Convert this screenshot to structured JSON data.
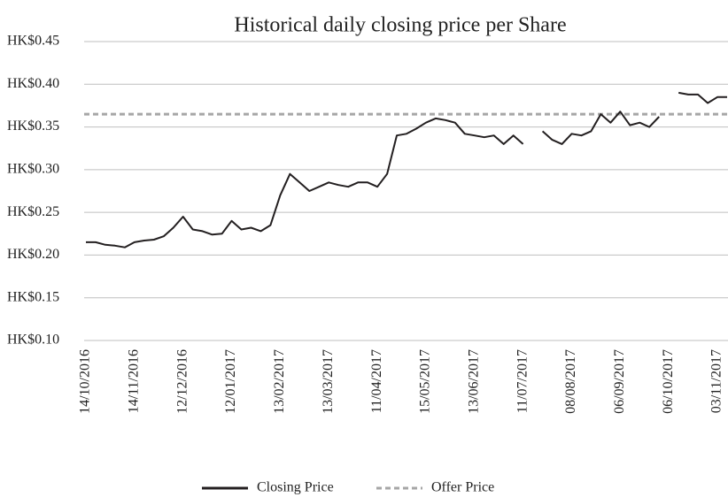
{
  "chart_data": {
    "type": "line",
    "title": "Historical daily closing price per Share",
    "categories": [
      "14/10/2016",
      null,
      null,
      null,
      null,
      "14/11/2016",
      null,
      null,
      null,
      null,
      "12/12/2016",
      null,
      null,
      null,
      null,
      "12/01/2017",
      null,
      null,
      null,
      null,
      "13/02/2017",
      null,
      null,
      null,
      null,
      "13/03/2017",
      null,
      null,
      null,
      null,
      "11/04/2017",
      null,
      null,
      null,
      null,
      "15/05/2017",
      null,
      null,
      null,
      null,
      "13/06/2017",
      null,
      null,
      null,
      null,
      "11/07/2017",
      null,
      null,
      null,
      null,
      "08/08/2017",
      null,
      null,
      null,
      null,
      "06/09/2017",
      null,
      null,
      null,
      null,
      "06/10/2017",
      null,
      null,
      null,
      null,
      "03/11/2017",
      null
    ],
    "series": [
      {
        "name": "Closing Price",
        "color": "#231f20",
        "values": [
          0.215,
          0.215,
          0.212,
          0.211,
          0.209,
          0.215,
          0.217,
          0.218,
          0.222,
          0.232,
          0.245,
          0.23,
          0.228,
          0.224,
          0.225,
          0.24,
          0.23,
          0.232,
          0.228,
          0.235,
          0.27,
          0.295,
          0.285,
          0.275,
          0.28,
          0.285,
          0.282,
          0.28,
          0.285,
          0.285,
          0.28,
          0.295,
          0.34,
          0.342,
          0.348,
          0.355,
          0.36,
          0.358,
          0.355,
          0.342,
          0.34,
          0.338,
          0.34,
          0.33,
          0.34,
          0.33,
          null,
          0.345,
          0.335,
          0.33,
          0.342,
          0.34,
          0.345,
          0.365,
          0.355,
          0.368,
          0.352,
          0.355,
          0.35,
          0.362,
          null,
          0.39,
          0.388,
          0.388,
          0.378,
          0.385,
          0.385
        ]
      }
    ],
    "reference_lines": [
      {
        "name": "Offer Price",
        "value": 0.365,
        "color": "#a6a6a6",
        "dashed": true
      }
    ],
    "ylim": [
      0.1,
      0.45
    ],
    "yticks": [
      {
        "value": 0.1,
        "label": "HK$0.10"
      },
      {
        "value": 0.15,
        "label": "HK$0.15"
      },
      {
        "value": 0.2,
        "label": "HK$0.20"
      },
      {
        "value": 0.25,
        "label": "HK$0.25"
      },
      {
        "value": 0.3,
        "label": "HK$0.30"
      },
      {
        "value": 0.35,
        "label": "HK$0.35"
      },
      {
        "value": 0.4,
        "label": "HK$0.40"
      },
      {
        "value": 0.45,
        "label": "HK$0.45"
      }
    ],
    "grid": true,
    "legend": "bottom"
  }
}
